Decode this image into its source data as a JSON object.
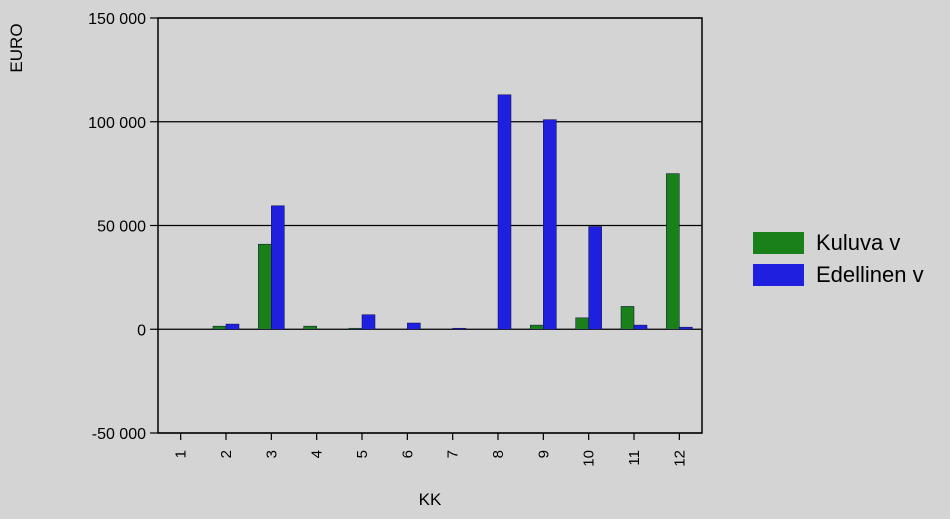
{
  "chart_data": {
    "type": "bar",
    "categories": [
      "1",
      "2",
      "3",
      "4",
      "5",
      "6",
      "7",
      "8",
      "9",
      "10",
      "11",
      "12"
    ],
    "series": [
      {
        "name": "Kuluva v",
        "color": "#1a801a",
        "values": [
          0,
          1500,
          41000,
          1500,
          500,
          0,
          0,
          0,
          2000,
          5500,
          11000,
          75000
        ]
      },
      {
        "name": "Edellinen v",
        "color": "#1f1fe0",
        "values": [
          0,
          2500,
          59500,
          0,
          7000,
          3000,
          500,
          113000,
          101000,
          49500,
          2000,
          1000
        ]
      }
    ],
    "y_ticks": [
      "150 000",
      "100 000",
      "50 000",
      "0",
      "-50 000"
    ],
    "y_tick_values": [
      150000,
      100000,
      50000,
      0,
      -50000
    ],
    "xlabel": "KK",
    "ylabel": "EURO",
    "ylim": [
      -50000,
      150000
    ],
    "grid": "horizontal",
    "legend": "right"
  }
}
